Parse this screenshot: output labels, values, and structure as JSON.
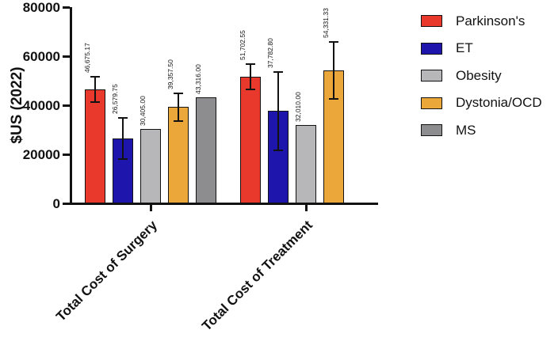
{
  "figure": {
    "background": "#ffffff",
    "axis_color": "#121212"
  },
  "chart_data": {
    "type": "bar",
    "title": "",
    "ylabel": "$US (2022)",
    "xlabel": "",
    "ylim": [
      0,
      80000
    ],
    "grid": false,
    "legend_position": "right",
    "bar_border_color": "#121212",
    "yticks": [
      {
        "value": 0,
        "label": "0"
      },
      {
        "value": 20000,
        "label": "20000"
      },
      {
        "value": 40000,
        "label": "40000"
      },
      {
        "value": 60000,
        "label": "60000"
      },
      {
        "value": 80000,
        "label": "80000"
      }
    ],
    "categories": [
      {
        "label": "Total Cost of Surgery"
      },
      {
        "label": "Total Cost of Treatment"
      }
    ],
    "series": [
      {
        "name": "Parkinson's",
        "color": "#E8392C",
        "points": [
          {
            "value": 46675.17,
            "label": "46,675.17",
            "error": 5500
          },
          {
            "value": 51702.55,
            "label": "51,702.55",
            "error": 5500
          }
        ]
      },
      {
        "name": "ET",
        "color": "#1E16AC",
        "points": [
          {
            "value": 26579.75,
            "label": "26,579.75",
            "error": 8800
          },
          {
            "value": 37782.8,
            "label": "37,782.80",
            "error": 16300
          }
        ]
      },
      {
        "name": "Obesity",
        "color": "#B7B7B9",
        "points": [
          {
            "value": 30405.0,
            "label": "30,405.00",
            "error": 0
          },
          {
            "value": 32010.0,
            "label": "32,010.00",
            "error": 0
          }
        ]
      },
      {
        "name": "Dystonia/OCD",
        "color": "#ECA73B",
        "points": [
          {
            "value": 39357.5,
            "label": "39,357.50",
            "error": 6100
          },
          {
            "value": 54331.33,
            "label": "54,331.33",
            "error": 12000
          }
        ]
      },
      {
        "name": "MS",
        "color": "#8D8D8F",
        "points": [
          {
            "value": 43316.0,
            "label": "43,316.00",
            "error": 0
          },
          null
        ]
      }
    ]
  }
}
